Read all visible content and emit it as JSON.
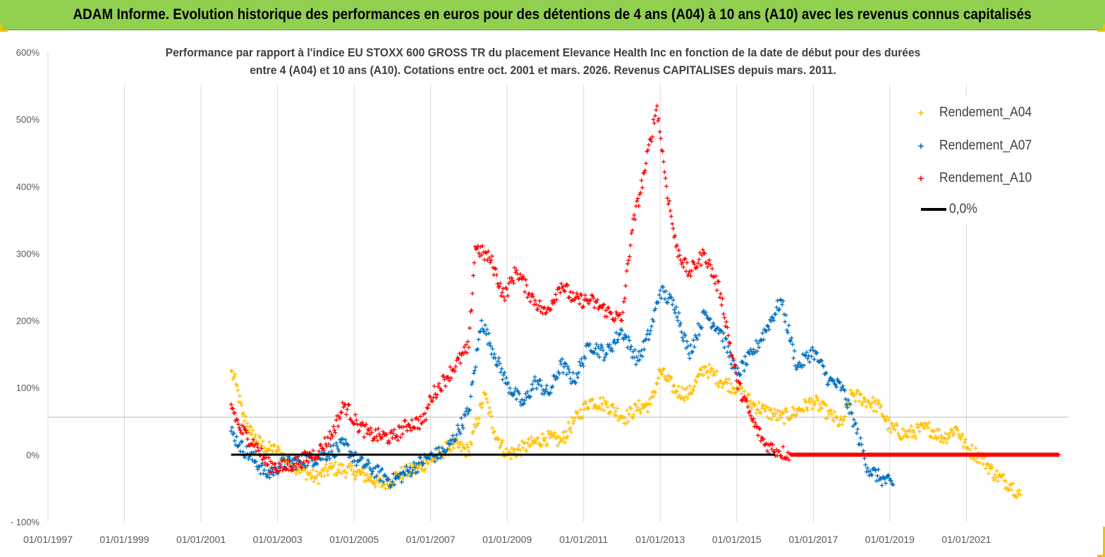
{
  "banner": {
    "title": "ADAM Informe. Evolution historique des performances en euros pour des détentions de 4 ans (A04) à 10 ans (A10) avec les revenus connus capitalisés"
  },
  "colors": {
    "banner_bg": "#92d050",
    "A04": "#ffc000",
    "A07": "#0070c0",
    "A10": "#ff0000",
    "zero_line": "#000000"
  },
  "chart_data": {
    "type": "scatter",
    "title_line1": "Performance par rapport à l'indice EU STOXX 600 GROSS TR  du placement Elevance Health Inc en fonction de la date de début pour des durées",
    "title_line2": "entre 4 (A04) et 10 ans (A10). Cotations entre oct. 2001 et mars. 2026. Revenus CAPITALISES depuis mars. 2011.",
    "xlabel": "",
    "ylabel": "",
    "x_tick_labels": [
      "01/01/1997",
      "01/01/1999",
      "01/01/2001",
      "01/01/2003",
      "01/01/2005",
      "01/01/2007",
      "01/01/2009",
      "01/01/2011",
      "01/01/2013",
      "01/01/2015",
      "01/01/2017",
      "01/01/2019",
      "01/01/2021"
    ],
    "xlim": [
      "1997-01-01",
      "2023-09-01"
    ],
    "y_tick_labels": [
      "- 100%",
      "0%",
      "100%",
      "200%",
      "300%",
      "400%",
      "500%",
      "600%"
    ],
    "ylim": [
      -100,
      600
    ],
    "grid": true,
    "legend_position": "top-right",
    "series": [
      {
        "name": "Rendement_A04",
        "marker": "+",
        "color": "#ffc000",
        "points": [
          [
            "2001-10-15",
            125
          ],
          [
            "2001-12-01",
            105
          ],
          [
            "2002-02-01",
            60
          ],
          [
            "2002-05-01",
            30
          ],
          [
            "2002-09-01",
            10
          ],
          [
            "2003-01-01",
            5
          ],
          [
            "2003-06-01",
            -15
          ],
          [
            "2004-01-01",
            -35
          ],
          [
            "2004-06-01",
            -20
          ],
          [
            "2005-01-01",
            -25
          ],
          [
            "2005-06-01",
            -35
          ],
          [
            "2005-10-01",
            -45
          ],
          [
            "2006-03-01",
            -30
          ],
          [
            "2006-09-01",
            -20
          ],
          [
            "2007-02-01",
            -5
          ],
          [
            "2007-08-01",
            15
          ],
          [
            "2008-01-01",
            5
          ],
          [
            "2008-06-01",
            90
          ],
          [
            "2008-09-01",
            35
          ],
          [
            "2009-01-01",
            0
          ],
          [
            "2009-06-01",
            10
          ],
          [
            "2010-01-01",
            25
          ],
          [
            "2010-06-01",
            20
          ],
          [
            "2010-10-01",
            50
          ],
          [
            "2011-03-01",
            80
          ],
          [
            "2011-08-01",
            75
          ],
          [
            "2012-02-01",
            55
          ],
          [
            "2012-06-01",
            70
          ],
          [
            "2012-10-01",
            75
          ],
          [
            "2013-01-01",
            125
          ],
          [
            "2013-06-01",
            95
          ],
          [
            "2013-10-01",
            90
          ],
          [
            "2014-03-01",
            130
          ],
          [
            "2014-08-01",
            110
          ],
          [
            "2015-01-01",
            100
          ],
          [
            "2015-06-01",
            75
          ],
          [
            "2015-10-01",
            65
          ],
          [
            "2016-03-01",
            55
          ],
          [
            "2016-08-01",
            65
          ],
          [
            "2017-01-01",
            80
          ],
          [
            "2017-06-01",
            60
          ],
          [
            "2017-10-01",
            45
          ],
          [
            "2018-01-01",
            90
          ],
          [
            "2018-06-01",
            80
          ],
          [
            "2018-10-01",
            70
          ],
          [
            "2019-01-01",
            40
          ],
          [
            "2019-06-01",
            30
          ],
          [
            "2020-01-01",
            40
          ],
          [
            "2020-06-01",
            25
          ],
          [
            "2020-10-01",
            40
          ],
          [
            "2021-01-01",
            10
          ],
          [
            "2021-06-01",
            -5
          ],
          [
            "2021-10-01",
            -30
          ],
          [
            "2022-03-01",
            -45
          ],
          [
            "2022-06-01",
            -60
          ]
        ]
      },
      {
        "name": "Rendement_A07",
        "marker": "+",
        "color": "#0070c0",
        "points": [
          [
            "2001-10-15",
            35
          ],
          [
            "2002-01-01",
            15
          ],
          [
            "2002-06-01",
            -10
          ],
          [
            "2002-10-01",
            -30
          ],
          [
            "2003-02-01",
            -15
          ],
          [
            "2003-08-01",
            -10
          ],
          [
            "2004-02-01",
            -5
          ],
          [
            "2004-06-01",
            5
          ],
          [
            "2004-10-01",
            15
          ],
          [
            "2005-02-01",
            -10
          ],
          [
            "2005-06-01",
            -20
          ],
          [
            "2006-01-01",
            -40
          ],
          [
            "2006-06-01",
            -25
          ],
          [
            "2006-12-01",
            -5
          ],
          [
            "2007-06-01",
            5
          ],
          [
            "2008-01-01",
            65
          ],
          [
            "2008-05-01",
            200
          ],
          [
            "2008-09-01",
            150
          ],
          [
            "2009-01-01",
            105
          ],
          [
            "2009-06-01",
            75
          ],
          [
            "2009-10-01",
            110
          ],
          [
            "2010-02-01",
            90
          ],
          [
            "2010-06-01",
            135
          ],
          [
            "2010-10-01",
            110
          ],
          [
            "2011-03-01",
            165
          ],
          [
            "2011-08-01",
            150
          ],
          [
            "2012-01-01",
            185
          ],
          [
            "2012-06-01",
            140
          ],
          [
            "2012-10-01",
            185
          ],
          [
            "2013-01-01",
            245
          ],
          [
            "2013-06-01",
            220
          ],
          [
            "2013-10-01",
            150
          ],
          [
            "2014-03-01",
            210
          ],
          [
            "2014-08-01",
            185
          ],
          [
            "2015-01-01",
            120
          ],
          [
            "2015-06-01",
            150
          ],
          [
            "2015-10-01",
            185
          ],
          [
            "2016-03-01",
            230
          ],
          [
            "2016-08-01",
            130
          ],
          [
            "2017-01-01",
            155
          ],
          [
            "2017-06-01",
            110
          ],
          [
            "2017-10-01",
            100
          ],
          [
            "2018-02-01",
            45
          ],
          [
            "2018-06-01",
            -20
          ],
          [
            "2018-10-01",
            -35
          ],
          [
            "2019-02-01",
            -45
          ]
        ]
      },
      {
        "name": "Rendement_A10",
        "marker": "+",
        "color": "#ff0000",
        "points": [
          [
            "2001-10-15",
            75
          ],
          [
            "2002-01-01",
            40
          ],
          [
            "2002-06-01",
            15
          ],
          [
            "2002-10-01",
            -15
          ],
          [
            "2003-03-01",
            -20
          ],
          [
            "2003-08-01",
            -10
          ],
          [
            "2004-02-01",
            5
          ],
          [
            "2004-06-01",
            30
          ],
          [
            "2004-10-01",
            75
          ],
          [
            "2005-02-01",
            45
          ],
          [
            "2005-06-01",
            30
          ],
          [
            "2006-01-01",
            25
          ],
          [
            "2006-06-01",
            45
          ],
          [
            "2006-11-01",
            50
          ],
          [
            "2007-01-01",
            85
          ],
          [
            "2007-06-01",
            115
          ],
          [
            "2008-01-01",
            160
          ],
          [
            "2008-03-01",
            310
          ],
          [
            "2008-08-01",
            290
          ],
          [
            "2008-12-01",
            235
          ],
          [
            "2009-04-01",
            275
          ],
          [
            "2009-08-01",
            240
          ],
          [
            "2010-01-01",
            210
          ],
          [
            "2010-06-01",
            255
          ],
          [
            "2010-10-01",
            230
          ],
          [
            "2011-03-01",
            230
          ],
          [
            "2011-08-01",
            215
          ],
          [
            "2012-01-01",
            200
          ],
          [
            "2012-04-01",
            330
          ],
          [
            "2012-08-01",
            420
          ],
          [
            "2012-12-01",
            520
          ],
          [
            "2013-03-01",
            400
          ],
          [
            "2013-06-01",
            310
          ],
          [
            "2013-10-01",
            270
          ],
          [
            "2014-03-01",
            300
          ],
          [
            "2014-08-01",
            240
          ],
          [
            "2015-01-01",
            110
          ],
          [
            "2015-06-01",
            50
          ],
          [
            "2015-10-01",
            15
          ],
          [
            "2016-02-01",
            5
          ],
          [
            "2016-06-01",
            0
          ],
          [
            "2023-06-01",
            0
          ]
        ]
      },
      {
        "name": "0,0%",
        "type": "line",
        "color": "#000000",
        "points": [
          [
            "2001-10-15",
            0
          ],
          [
            "2016-01-01",
            0
          ]
        ]
      }
    ]
  }
}
